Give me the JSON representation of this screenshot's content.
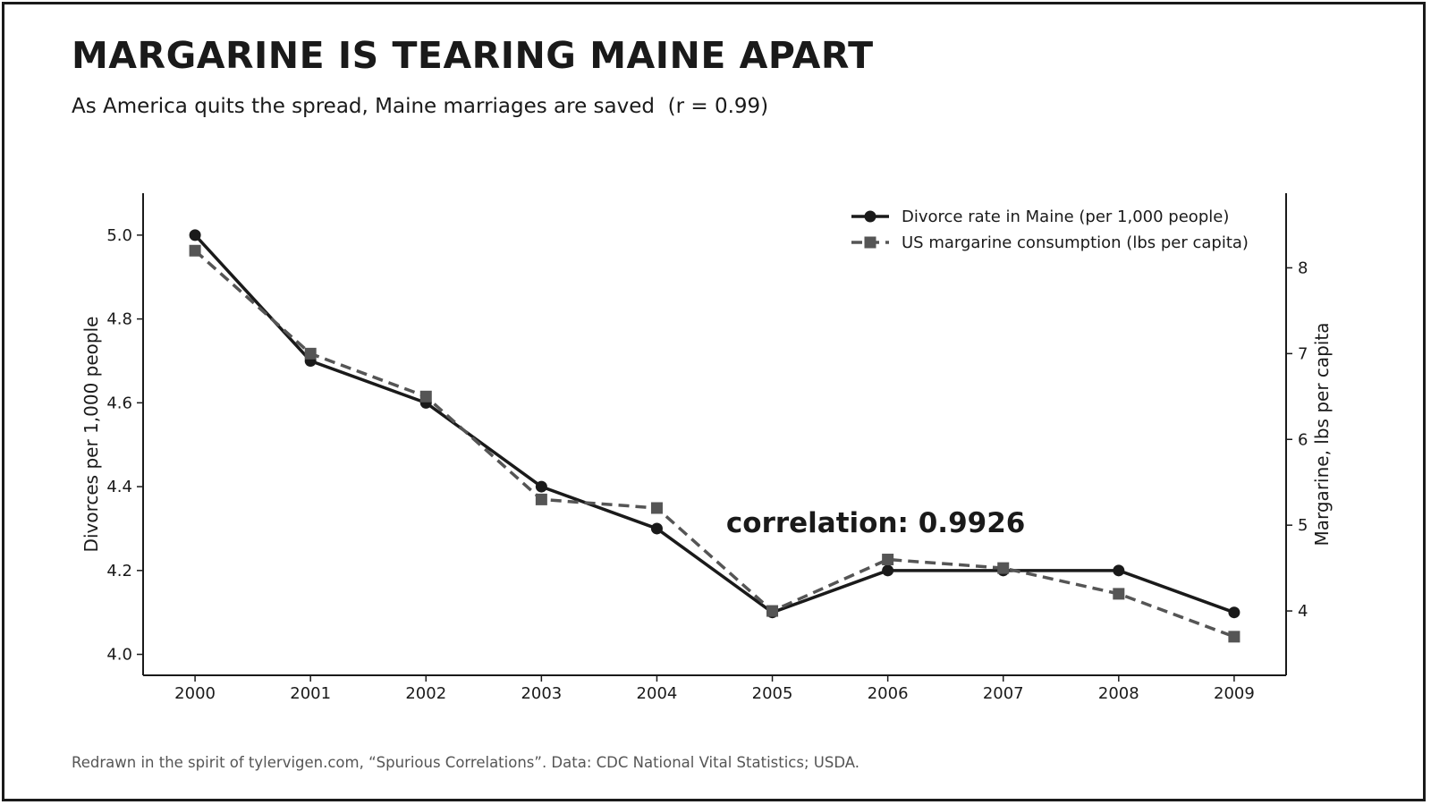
{
  "header": {
    "title": "MARGARINE IS TEARING MAINE APART",
    "subtitle": "As America quits the spread, Maine marriages are saved  (r = 0.99)"
  },
  "footer": {
    "text": "Redrawn in the spirit of tylervigen.com, “Spurious Correlations”. Data: CDC National Vital Statistics; USDA."
  },
  "colors": {
    "divorce_series": "#1a1a1a",
    "margarine_series": "#555555",
    "axis": "#1a1a1a"
  },
  "chart_data": {
    "type": "line",
    "x": [
      2000,
      2001,
      2002,
      2003,
      2004,
      2005,
      2006,
      2007,
      2008,
      2009
    ],
    "x_ticks": [
      "2000",
      "2001",
      "2002",
      "2003",
      "2004",
      "2005",
      "2006",
      "2007",
      "2008",
      "2009"
    ],
    "series": [
      {
        "name": "Divorce rate in Maine  (per 1,000 people)",
        "axis": "left",
        "style": "solid",
        "marker": "circle",
        "values": [
          5.0,
          4.7,
          4.6,
          4.4,
          4.3,
          4.1,
          4.2,
          4.2,
          4.2,
          4.1
        ]
      },
      {
        "name": "US margarine consumption  (lbs per capita)",
        "axis": "right",
        "style": "dashed",
        "marker": "square",
        "values": [
          8.2,
          7.0,
          6.5,
          5.3,
          5.2,
          4.0,
          4.6,
          4.5,
          4.2,
          3.7
        ]
      }
    ],
    "ylabel_left": "Divorces per 1,000 people",
    "ylabel_right": "Margarine, lbs per capita",
    "ylim_left": [
      3.95,
      5.1
    ],
    "ylim_right": [
      3.25,
      8.87
    ],
    "yticks_left": [
      4.0,
      4.2,
      4.4,
      4.6,
      4.8,
      5.0
    ],
    "ytick_labels_left": [
      "4.0",
      "4.2",
      "4.4",
      "4.6",
      "4.8",
      "5.0"
    ],
    "yticks_right": [
      4,
      5,
      6,
      7,
      8
    ],
    "ytick_labels_right": [
      "4",
      "5",
      "6",
      "7",
      "8"
    ],
    "annotation": {
      "text": "correlation: 0.9926",
      "x": 2004.6,
      "y": 4.3
    },
    "grid": false,
    "legend": "top-right"
  }
}
